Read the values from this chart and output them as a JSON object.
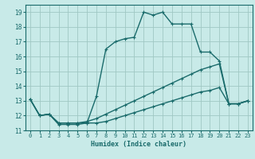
{
  "title": "",
  "xlabel": "Humidex (Indice chaleur)",
  "ylabel": "",
  "xlim": [
    -0.5,
    23.5
  ],
  "ylim": [
    11,
    19.5
  ],
  "yticks": [
    11,
    12,
    13,
    14,
    15,
    16,
    17,
    18,
    19
  ],
  "xticks": [
    0,
    1,
    2,
    3,
    4,
    5,
    6,
    7,
    8,
    9,
    10,
    11,
    12,
    13,
    14,
    15,
    16,
    17,
    18,
    19,
    20,
    21,
    22,
    23
  ],
  "xtick_labels": [
    "0",
    "1",
    "2",
    "3",
    "4",
    "5",
    "6",
    "7",
    "8",
    "9",
    "10",
    "11",
    "12",
    "13",
    "14",
    "15",
    "16",
    "17",
    "18",
    "19",
    "20",
    "21",
    "22",
    "23"
  ],
  "bg_color": "#c8eae8",
  "grid_color": "#a0c8c4",
  "line_color": "#1a6b6b",
  "line1_x": [
    0,
    1,
    2,
    3,
    4,
    5,
    6,
    7,
    8,
    9,
    10,
    11,
    12,
    13,
    14,
    15,
    16,
    17,
    18,
    19,
    20,
    21,
    22,
    23
  ],
  "line1_y": [
    13.1,
    12.0,
    12.1,
    11.4,
    11.4,
    11.4,
    11.5,
    13.3,
    16.5,
    17.0,
    17.2,
    17.3,
    19.0,
    18.8,
    19.0,
    18.2,
    18.2,
    18.2,
    16.3,
    16.3,
    15.7,
    12.8,
    12.8,
    13.0
  ],
  "line2_x": [
    0,
    1,
    2,
    3,
    4,
    5,
    6,
    7,
    8,
    9,
    10,
    11,
    12,
    13,
    14,
    15,
    16,
    17,
    18,
    19,
    20,
    21,
    22,
    23
  ],
  "line2_y": [
    13.1,
    12.0,
    12.1,
    11.5,
    11.5,
    11.5,
    11.6,
    11.8,
    12.1,
    12.4,
    12.7,
    13.0,
    13.3,
    13.6,
    13.9,
    14.2,
    14.5,
    14.8,
    15.1,
    15.3,
    15.5,
    12.8,
    12.8,
    13.0
  ],
  "line3_x": [
    0,
    1,
    2,
    3,
    4,
    5,
    6,
    7,
    8,
    9,
    10,
    11,
    12,
    13,
    14,
    15,
    16,
    17,
    18,
    19,
    20,
    21,
    22,
    23
  ],
  "line3_y": [
    13.1,
    12.0,
    12.1,
    11.5,
    11.5,
    11.5,
    11.5,
    11.5,
    11.6,
    11.8,
    12.0,
    12.2,
    12.4,
    12.6,
    12.8,
    13.0,
    13.2,
    13.4,
    13.6,
    13.7,
    13.9,
    12.8,
    12.8,
    13.0
  ],
  "marker": "+",
  "markersize": 3,
  "linewidth": 1.0
}
